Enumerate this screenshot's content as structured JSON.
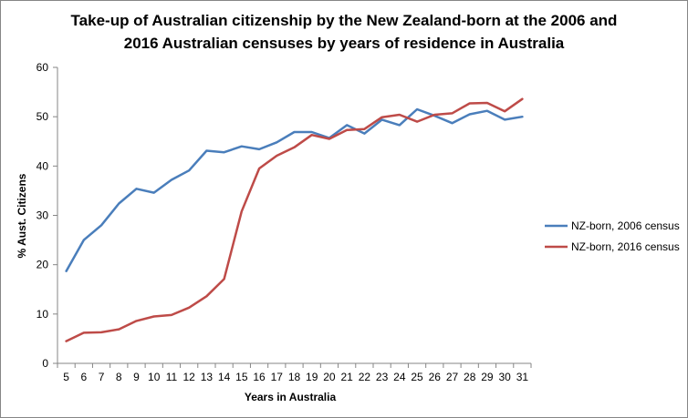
{
  "chart_data": {
    "type": "line",
    "title_lines": [
      "Take-up of Australian citizenship by the New Zealand-born at the 2006 and",
      "2016 Australian censuses by years of residence in Australia"
    ],
    "xlabel": "Years in Australia",
    "ylabel": "% Aust. Citizens",
    "x": [
      5,
      6,
      7,
      8,
      9,
      10,
      11,
      12,
      13,
      14,
      15,
      16,
      17,
      18,
      19,
      20,
      21,
      22,
      23,
      24,
      25,
      26,
      27,
      28,
      29,
      30,
      31
    ],
    "y_ticks": [
      0,
      10,
      20,
      30,
      40,
      50,
      60
    ],
    "ylim": [
      0,
      60
    ],
    "grid": false,
    "legend_position": "right",
    "series": [
      {
        "name": "NZ-born, 2006 census",
        "color": "#4a7ebb",
        "values": [
          18.7,
          25.0,
          28.0,
          32.4,
          35.4,
          34.6,
          37.2,
          39.1,
          43.1,
          42.8,
          44.0,
          43.4,
          44.8,
          46.9,
          46.9,
          45.7,
          48.3,
          46.6,
          49.4,
          48.3,
          51.5,
          50.2,
          48.7,
          50.5,
          51.2,
          49.4,
          50.0
        ]
      },
      {
        "name": "NZ-born, 2016 census",
        "color": "#be4b48",
        "values": [
          4.5,
          6.2,
          6.3,
          6.9,
          8.6,
          9.5,
          9.8,
          11.3,
          13.6,
          17.1,
          30.8,
          39.5,
          42.1,
          43.8,
          46.3,
          45.5,
          47.3,
          47.5,
          49.9,
          50.4,
          49.0,
          50.4,
          50.7,
          52.7,
          52.8,
          51.1,
          53.6
        ]
      }
    ]
  }
}
